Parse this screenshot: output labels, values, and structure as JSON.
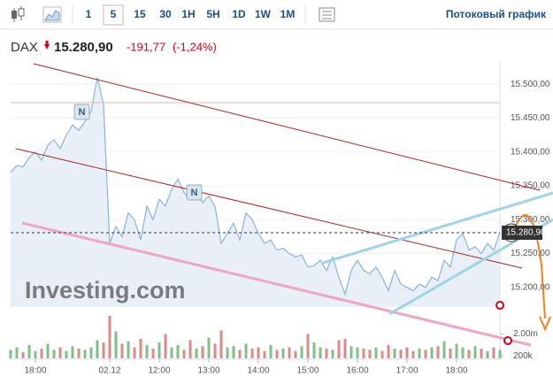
{
  "toolbar": {
    "intervals": [
      "1",
      "5",
      "15",
      "30",
      "1H",
      "5H",
      "1D",
      "1W",
      "1M"
    ],
    "active": "5",
    "stream": "Потоковый график"
  },
  "header": {
    "symbol": "DAX",
    "price": "15.280,90",
    "change": "-191,77",
    "change_pct": "(-1,24%)"
  },
  "watermark": "Investing.com",
  "chart_data": {
    "type": "area",
    "color": "#8ab4d6",
    "fill": "#e8eff6",
    "categories": [
      null,
      null,
      null,
      null,
      "18:00",
      null,
      null,
      null,
      null,
      null,
      null,
      null,
      null,
      null,
      null,
      null,
      "02.12",
      null,
      null,
      null,
      null,
      null,
      null,
      null,
      "12:00",
      null,
      null,
      null,
      null,
      null,
      null,
      null,
      "13:00",
      null,
      null,
      null,
      null,
      null,
      null,
      null,
      "14:00",
      null,
      null,
      null,
      null,
      null,
      null,
      null,
      "15:00",
      null,
      null,
      null,
      null,
      null,
      null,
      null,
      "16:00",
      null,
      null,
      null,
      null,
      null,
      null,
      null,
      "17:00",
      null,
      null,
      null,
      null,
      null,
      null,
      null,
      "18:00",
      null,
      null,
      null,
      null,
      null,
      null,
      null
    ],
    "values": [
      15370,
      15380,
      15378,
      15392,
      15400,
      15388,
      15410,
      15418,
      15405,
      15425,
      15440,
      15432,
      15445,
      15460,
      15510,
      15470,
      15265,
      15290,
      15275,
      15310,
      15300,
      15270,
      15320,
      15300,
      15330,
      15320,
      15345,
      15360,
      15340,
      15330,
      15345,
      15325,
      15335,
      15320,
      15265,
      15280,
      15295,
      15270,
      15310,
      15300,
      15280,
      15265,
      15270,
      15255,
      15258,
      15250,
      15245,
      15248,
      15230,
      15232,
      15240,
      15225,
      15245,
      15215,
      15190,
      15225,
      15240,
      15225,
      15220,
      15230,
      15215,
      15195,
      15225,
      15205,
      15200,
      15195,
      15205,
      15200,
      15215,
      15210,
      15240,
      15230,
      15270,
      15280,
      15255,
      15260,
      15250,
      15265,
      15255,
      15281
    ],
    "ylim": [
      15171,
      15546
    ],
    "yticks": [
      {
        "value": 15200,
        "label": "15.200,00"
      },
      {
        "value": 15250,
        "label": "15.250,00"
      },
      {
        "value": 15300,
        "label": "15.300,00"
      },
      {
        "value": 15350,
        "label": "15.350,00"
      },
      {
        "value": 15400,
        "label": "15.400,00"
      },
      {
        "value": 15450,
        "label": "15.450,00"
      },
      {
        "value": 15500,
        "label": "15.500,00"
      }
    ],
    "volume": {
      "axis": "y2",
      "up_color": "#7fbf8a",
      "down_color": "#d98a8a",
      "values": [
        700000,
        900000,
        500000,
        1100000,
        600000,
        800000,
        1200000,
        700000,
        900000,
        600000,
        1000000,
        800000,
        700000,
        900000,
        1500000,
        1300000,
        3500000,
        2200000,
        1200000,
        1400000,
        900000,
        1600000,
        1100000,
        800000,
        1300000,
        2000000,
        900000,
        1100000,
        700000,
        1500000,
        800000,
        1000000,
        1700000,
        1200000,
        2300000,
        900000,
        1000000,
        700000,
        1200000,
        800000,
        900000,
        600000,
        1100000,
        700000,
        800000,
        900000,
        600000,
        1000000,
        2000000,
        1300000,
        900000,
        800000,
        700000,
        1500000,
        1600000,
        1000000,
        900000,
        800000,
        700000,
        900000,
        600000,
        1100000,
        800000,
        700000,
        900000,
        600000,
        800000,
        700000,
        900000,
        1000000,
        1400000,
        800000,
        1200000,
        900000,
        700000,
        1000000,
        800000,
        600000,
        900000,
        700000
      ]
    },
    "y2lim": [
      0,
      4000000
    ],
    "y2ticks": [
      {
        "value": 200000,
        "label": "200k"
      },
      {
        "value": 2000000,
        "label": "2.00m"
      }
    ]
  }
}
